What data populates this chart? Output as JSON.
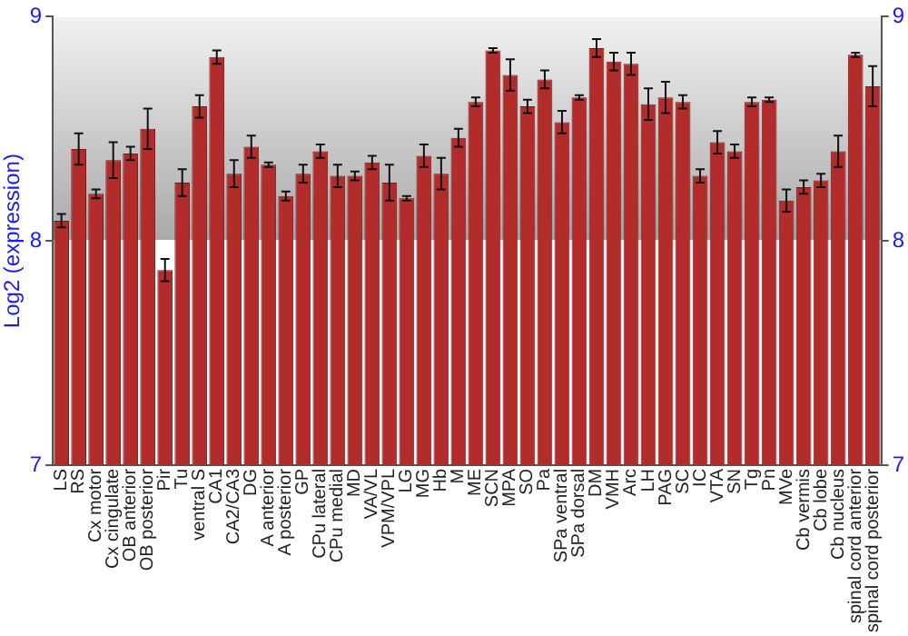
{
  "chart_data": {
    "type": "bar",
    "ylabel": "Log2 (expression)",
    "categories": [
      "LS",
      "RS",
      "Cx motor",
      "Cx cingulate",
      "OB anterior",
      "OB posterior",
      "Pir",
      "Tu",
      "ventral S",
      "CA1",
      "CA2/CA3",
      "DG",
      "A anterior",
      "A posterior",
      "GP",
      "CPu lateral",
      "CPu medial",
      "MD",
      "VA/VL",
      "VPM/VPL",
      "LG",
      "MG",
      "Hb",
      "M",
      "ME",
      "SCN",
      "MPA",
      "SO",
      "Pa",
      "SPa ventral",
      "SPa dorsal",
      "DM",
      "VMH",
      "Arc",
      "LH",
      "PAG",
      "SC",
      "IC",
      "VTA",
      "SN",
      "Tg",
      "Pn",
      "MVe",
      "Cb vermis",
      "Cb lobe",
      "Cb nucleus",
      "spinal cord anterior",
      "spinal cord posterior"
    ],
    "values": [
      8.09,
      8.41,
      8.21,
      8.36,
      8.39,
      8.5,
      7.87,
      8.26,
      8.6,
      8.82,
      8.3,
      8.42,
      8.34,
      8.2,
      8.3,
      8.4,
      8.29,
      8.29,
      8.35,
      8.26,
      8.19,
      8.38,
      8.3,
      8.46,
      8.62,
      8.85,
      8.74,
      8.6,
      8.72,
      8.53,
      8.64,
      8.86,
      8.8,
      8.79,
      8.61,
      8.64,
      8.62,
      8.29,
      8.44,
      8.4,
      8.62,
      8.63,
      8.18,
      8.24,
      8.27,
      8.4,
      8.83,
      8.69
    ],
    "errors": [
      0.03,
      0.07,
      0.02,
      0.08,
      0.03,
      0.09,
      0.05,
      0.06,
      0.05,
      0.03,
      0.06,
      0.05,
      0.01,
      0.02,
      0.04,
      0.03,
      0.05,
      0.02,
      0.03,
      0.08,
      0.01,
      0.05,
      0.07,
      0.04,
      0.02,
      0.01,
      0.07,
      0.03,
      0.04,
      0.05,
      0.01,
      0.04,
      0.04,
      0.05,
      0.07,
      0.07,
      0.03,
      0.03,
      0.05,
      0.03,
      0.02,
      0.01,
      0.05,
      0.03,
      0.03,
      0.07,
      0.01,
      0.09
    ],
    "color": "#b22c2c",
    "ylim": [
      7,
      9
    ],
    "yticks": [
      7,
      8,
      9
    ],
    "y2lim": [
      7,
      9
    ],
    "y2ticks": [
      7,
      8,
      9
    ],
    "grid": "y"
  }
}
